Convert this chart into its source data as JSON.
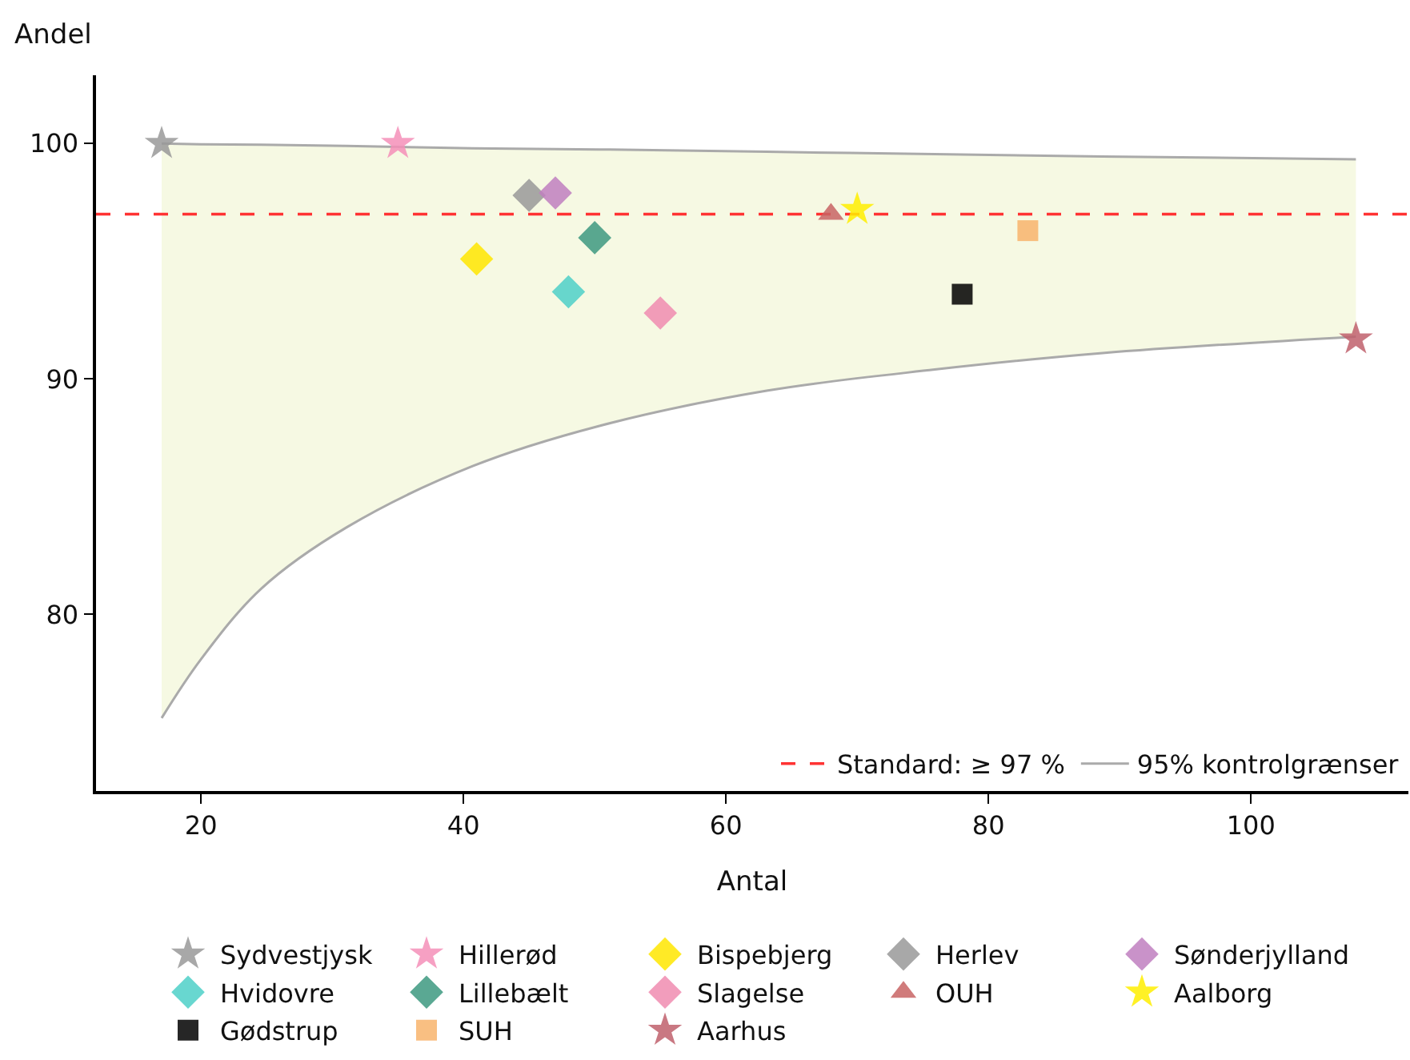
{
  "chart_data": {
    "type": "scatter",
    "xlabel": "Antal",
    "ylabel": "Andel",
    "xlim": [
      12,
      112
    ],
    "xticks": [
      20,
      40,
      60,
      80,
      100
    ],
    "ylim": [
      72.5,
      102.9
    ],
    "yticks": [
      80,
      90,
      100
    ],
    "grid": false,
    "legend": "bottom",
    "ref_lines": [
      {
        "axis": "y",
        "value": 97,
        "label": "Standard: ≥ 97 %",
        "color": "#ff3333",
        "line_style": "dashed"
      }
    ],
    "series": [
      {
        "name": "Sydvestjysk",
        "color": "#999999",
        "marker": "star",
        "x": [
          17
        ],
        "values": [
          100
        ]
      },
      {
        "name": "Hillerød",
        "color": "#f48fb8",
        "marker": "star",
        "x": [
          35
        ],
        "values": [
          100
        ]
      },
      {
        "name": "Bispebjerg",
        "color": "#ffe600",
        "marker": "diamond",
        "x": [
          41
        ],
        "values": [
          95.1
        ]
      },
      {
        "name": "Herlev",
        "color": "#999999",
        "marker": "diamond",
        "x": [
          45
        ],
        "values": [
          97.8
        ]
      },
      {
        "name": "Sønderjylland",
        "color": "#bf7fbf",
        "marker": "diamond",
        "x": [
          47
        ],
        "values": [
          97.9
        ]
      },
      {
        "name": "Hvidovre",
        "color": "#4dd0c8",
        "marker": "diamond",
        "x": [
          48
        ],
        "values": [
          93.7
        ]
      },
      {
        "name": "Lillebælt",
        "color": "#3d9980",
        "marker": "diamond",
        "x": [
          50
        ],
        "values": [
          96.0
        ]
      },
      {
        "name": "Slagelse",
        "color": "#f08cb0",
        "marker": "diamond",
        "x": [
          55
        ],
        "values": [
          92.8
        ]
      },
      {
        "name": "OUH",
        "color": "#c86464",
        "marker": "triangle",
        "x": [
          68
        ],
        "values": [
          97.0
        ]
      },
      {
        "name": "Aalborg",
        "color": "#ffee00",
        "marker": "star",
        "x": [
          70
        ],
        "values": [
          97.2
        ]
      },
      {
        "name": "Gødstrup",
        "color": "#000000",
        "marker": "square",
        "x": [
          78
        ],
        "values": [
          93.6
        ]
      },
      {
        "name": "SUH",
        "color": "#f8b46c",
        "marker": "square",
        "x": [
          83
        ],
        "values": [
          96.3
        ]
      },
      {
        "name": "Aarhus",
        "color": "#c0606c",
        "marker": "star",
        "x": [
          108
        ],
        "values": [
          91.7
        ]
      },
      {
        "name": "95% kontrolgrænser",
        "type": "line",
        "color": "#aaaaaa",
        "marker": "none",
        "x": [
          17,
          20,
          24.6,
          31.1,
          40.7,
          50.3,
          63.1,
          75.9,
          88.7,
          108
        ],
        "values": [
          100,
          99.97,
          99.95,
          99.9,
          99.8,
          99.75,
          99.65,
          99.55,
          99.45,
          99.33
        ],
        "lower": [
          75.6,
          78.1,
          81.1,
          83.7,
          86.3,
          88.0,
          89.5,
          90.4,
          91.1,
          91.8
        ],
        "upper": [
          100,
          99.97,
          99.95,
          99.9,
          99.8,
          99.75,
          99.65,
          99.55,
          99.45,
          99.33
        ]
      },
      {
        "type": "line",
        "color": "#aaaaaa",
        "marker": "none",
        "x": [
          17,
          20,
          24.6,
          31.1,
          40.7,
          50.3,
          63.1,
          75.9,
          88.7,
          108
        ],
        "values": [
          75.6,
          78.1,
          81.1,
          83.7,
          86.3,
          88.0,
          89.5,
          90.4,
          91.1,
          91.8
        ]
      }
    ]
  }
}
